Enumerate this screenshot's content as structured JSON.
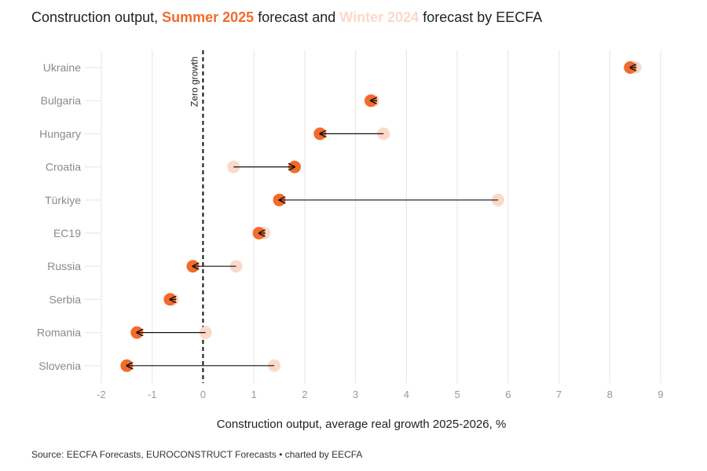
{
  "title": {
    "prefix": "Construction output,",
    "series1": "Summer 2025",
    "middle": "forecast and",
    "series2": "Winter 2024",
    "suffix": "forecast by EECFA"
  },
  "source": "Source: EECFA Forecasts, EUROCONSTRUCT Forecasts • charted by EECFA",
  "colors": {
    "summer": "#f26b2b",
    "winter": "#fbd9c9",
    "grid": "#e8e8e8",
    "tick": "#999999"
  },
  "chart_data": {
    "type": "dumbbell",
    "xlabel": "Construction output, average real growth 2025-2026, %",
    "xlim": [
      -2,
      9
    ],
    "xticks": [
      -2,
      -1,
      0,
      1,
      2,
      3,
      4,
      5,
      6,
      7,
      8,
      9
    ],
    "reference_line": {
      "x": 0,
      "label": "Zero growth"
    },
    "categories": [
      "Ukraine",
      "Bulgaria",
      "Hungary",
      "Croatia",
      "Türkiye",
      "EC19",
      "Russia",
      "Serbia",
      "Romania",
      "Slovenia"
    ],
    "series": [
      {
        "name": "Winter 2024",
        "values": [
          8.5,
          3.35,
          3.55,
          0.6,
          5.8,
          1.2,
          0.65,
          -0.6,
          0.05,
          1.4
        ]
      },
      {
        "name": "Summer 2025",
        "values": [
          8.4,
          3.3,
          2.3,
          1.8,
          1.5,
          1.1,
          -0.2,
          -0.65,
          -1.3,
          -1.5
        ]
      }
    ]
  }
}
